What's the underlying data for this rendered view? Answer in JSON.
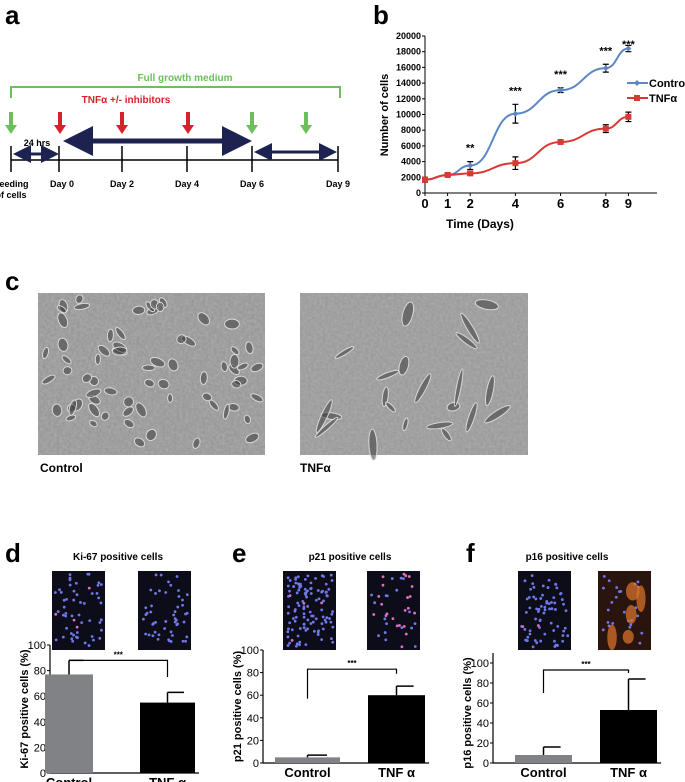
{
  "panel_labels": {
    "a": "a",
    "b": "b",
    "c": "c",
    "d": "d",
    "e": "e",
    "f": "f"
  },
  "colors": {
    "green": "#6cbf5a",
    "red": "#d6222b",
    "navy": "#1e2250",
    "control_line": "#5b87c5",
    "tnf_line": "#d83a32",
    "control_bar": "#808285",
    "tnf_bar": "#000000"
  },
  "diagram": {
    "full_medium": "Full growth medium",
    "treatment": "TNFα +/- inhibitors",
    "interval": "24 hrs",
    "seeding_line1": "Seeding",
    "seeding_line2": "of cells",
    "days": [
      "Day 0",
      "Day 2",
      "Day 4",
      "Day 6",
      "Day 9"
    ]
  },
  "images": {
    "control_label": "Control",
    "tnf_label": "TNFα"
  },
  "chart_data": [
    {
      "id": "b",
      "type": "line",
      "xlabel": "Time (Days)",
      "ylabel": "Number of cells",
      "xlim": [
        0,
        10
      ],
      "ylim": [
        0,
        20000
      ],
      "x_ticks": [
        0,
        1,
        2,
        4,
        6,
        8,
        9
      ],
      "y_ticks": [
        0,
        2000,
        4000,
        6000,
        8000,
        10000,
        12000,
        14000,
        16000,
        18000,
        20000
      ],
      "legend": "right",
      "x": [
        0,
        1,
        2,
        4,
        6,
        8,
        9
      ],
      "series": [
        {
          "name": "Control",
          "values": [
            1700,
            2300,
            3500,
            10100,
            13100,
            15900,
            18400
          ],
          "errors": [
            300,
            200,
            500,
            1200,
            300,
            500,
            400
          ]
        },
        {
          "name": "TNFα",
          "values": [
            1700,
            2300,
            2500,
            3800,
            6500,
            8200,
            9700
          ],
          "errors": [
            300,
            200,
            200,
            800,
            200,
            500,
            600
          ]
        }
      ],
      "significance": [
        {
          "x": 2,
          "label": "**"
        },
        {
          "x": 4,
          "label": "***"
        },
        {
          "x": 6,
          "label": "***"
        },
        {
          "x": 8,
          "label": "***"
        },
        {
          "x": 9,
          "label": "***"
        }
      ]
    },
    {
      "id": "d",
      "type": "bar",
      "title": "Ki-67 positive cells",
      "ylabel": "Ki-67 positive cells (%)",
      "categories": [
        "Control",
        "TNF α"
      ],
      "values": [
        77,
        55
      ],
      "errors": [
        11,
        8
      ],
      "ylim": [
        0,
        100
      ],
      "y_ticks": [
        0,
        20,
        40,
        60,
        80,
        100
      ],
      "significance": "***"
    },
    {
      "id": "e",
      "type": "bar",
      "title": "p21 positive cells",
      "ylabel": "p21 positive cells (%)",
      "categories": [
        "Control",
        "TNF α"
      ],
      "values": [
        5,
        60
      ],
      "errors": [
        2,
        8
      ],
      "ylim": [
        0,
        100
      ],
      "y_ticks": [
        0,
        20,
        40,
        60,
        80,
        100
      ],
      "significance": "***"
    },
    {
      "id": "f",
      "type": "bar",
      "title": "p16 positive cells",
      "ylabel": "p16 positive cells (%)",
      "categories": [
        "Control",
        "TNF α"
      ],
      "values": [
        8,
        53
      ],
      "errors": [
        8,
        31
      ],
      "ylim": [
        0,
        110
      ],
      "y_ticks": [
        0,
        20,
        40,
        60,
        80,
        100
      ],
      "significance": "***"
    }
  ]
}
